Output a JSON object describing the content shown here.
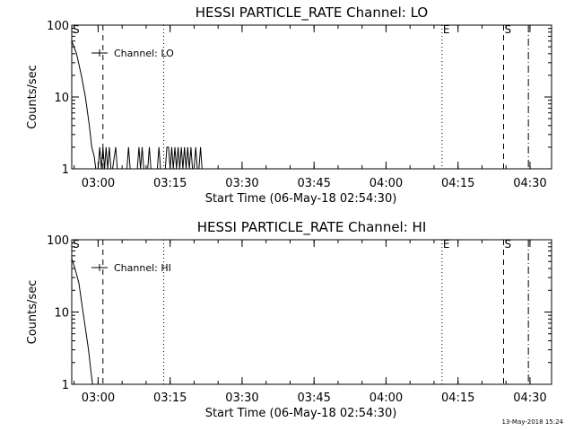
{
  "footer": {
    "timestamp": "13-May-2018 15:24"
  },
  "chart_data": [
    {
      "type": "line",
      "title": "HESSI PARTICLE_RATE Channel: LO",
      "xlabel": "Start Time (06-May-18 02:54:30)",
      "ylabel": "Counts/sec",
      "y_scale": "log",
      "ylim": [
        1,
        100
      ],
      "xlim": [
        "02:54:30",
        "04:34:30"
      ],
      "x_ticks": [
        "03:00",
        "03:15",
        "03:30",
        "03:45",
        "04:00",
        "04:15",
        "04:30"
      ],
      "y_ticks": [
        "1",
        "10",
        "100"
      ],
      "legend": {
        "label": "Channel: LO",
        "position": "top-left"
      },
      "markers": [
        {
          "time": "02:54:30",
          "style": "label",
          "label": "S"
        },
        {
          "time": "03:01:00",
          "style": "dashed"
        },
        {
          "time": "03:13:40",
          "style": "dotted"
        },
        {
          "time": "04:11:40",
          "style": "dotted",
          "label": "E"
        },
        {
          "time": "04:24:30",
          "style": "dashed",
          "label": "S"
        },
        {
          "time": "04:29:40",
          "style": "dashdot"
        }
      ],
      "series": [
        {
          "x": [
            "02:54:30",
            "02:55:30",
            "02:56:30",
            "02:57:20",
            "02:58:10",
            "02:58:40",
            "02:59:10",
            "02:59:30",
            "03:00:00",
            "03:00:20",
            "03:00:40",
            "03:01:00",
            "03:01:20",
            "03:01:40",
            "03:02:00",
            "03:02:20",
            "03:02:40",
            "03:03:00",
            "03:03:40",
            "03:04:00",
            "03:04:20",
            "03:06:00",
            "03:06:20",
            "03:06:40",
            "03:08:10",
            "03:08:30",
            "03:08:50",
            "03:09:10",
            "03:09:30",
            "03:10:20",
            "03:10:40",
            "03:11:00",
            "03:12:20",
            "03:12:40",
            "03:13:00",
            "03:14:00",
            "03:14:20",
            "03:14:40",
            "03:15:00",
            "03:15:20",
            "03:15:40",
            "03:16:00",
            "03:16:20",
            "03:16:40",
            "03:17:00",
            "03:17:20",
            "03:17:40",
            "03:18:00",
            "03:18:20",
            "03:18:40",
            "03:19:00",
            "03:19:20",
            "03:19:40",
            "03:20:00",
            "03:20:20",
            "03:20:40",
            "03:21:00",
            "03:21:20",
            "03:21:40",
            "03:22:00"
          ],
          "y": [
            60,
            40,
            20,
            10,
            4,
            2,
            1.5,
            1,
            1,
            2,
            1,
            2,
            1,
            2,
            1,
            2,
            1,
            1,
            2,
            1,
            1,
            1,
            2,
            1,
            1,
            2,
            1,
            2,
            1,
            1,
            2,
            1,
            1,
            2,
            1,
            1,
            2,
            2,
            1,
            2,
            1,
            2,
            1,
            2,
            1,
            2,
            1,
            2,
            1,
            2,
            1,
            2,
            1,
            1,
            2,
            1,
            1,
            2,
            1,
            1
          ]
        }
      ]
    },
    {
      "type": "line",
      "title": "HESSI PARTICLE_RATE Channel: HI",
      "xlabel": "Start Time (06-May-18 02:54:30)",
      "ylabel": "Counts/sec",
      "y_scale": "log",
      "ylim": [
        1,
        100
      ],
      "xlim": [
        "02:54:30",
        "04:34:30"
      ],
      "x_ticks": [
        "03:00",
        "03:15",
        "03:30",
        "03:45",
        "04:00",
        "04:15",
        "04:30"
      ],
      "y_ticks": [
        "1",
        "10",
        "100"
      ],
      "legend": {
        "label": "Channel: HI",
        "position": "top-left"
      },
      "markers": [
        {
          "time": "02:54:30",
          "style": "label",
          "label": "S"
        },
        {
          "time": "03:01:00",
          "style": "dashed"
        },
        {
          "time": "03:13:40",
          "style": "dotted"
        },
        {
          "time": "04:11:40",
          "style": "dotted",
          "label": "E"
        },
        {
          "time": "04:24:30",
          "style": "dashed",
          "label": "S"
        },
        {
          "time": "04:29:40",
          "style": "dashdot"
        }
      ],
      "series": [
        {
          "x": [
            "02:54:30",
            "02:55:10",
            "02:56:00",
            "02:56:40",
            "02:57:20",
            "02:58:00",
            "02:58:30",
            "02:58:50"
          ],
          "y": [
            55,
            40,
            25,
            12,
            6,
            3,
            1.5,
            1
          ]
        }
      ]
    }
  ]
}
